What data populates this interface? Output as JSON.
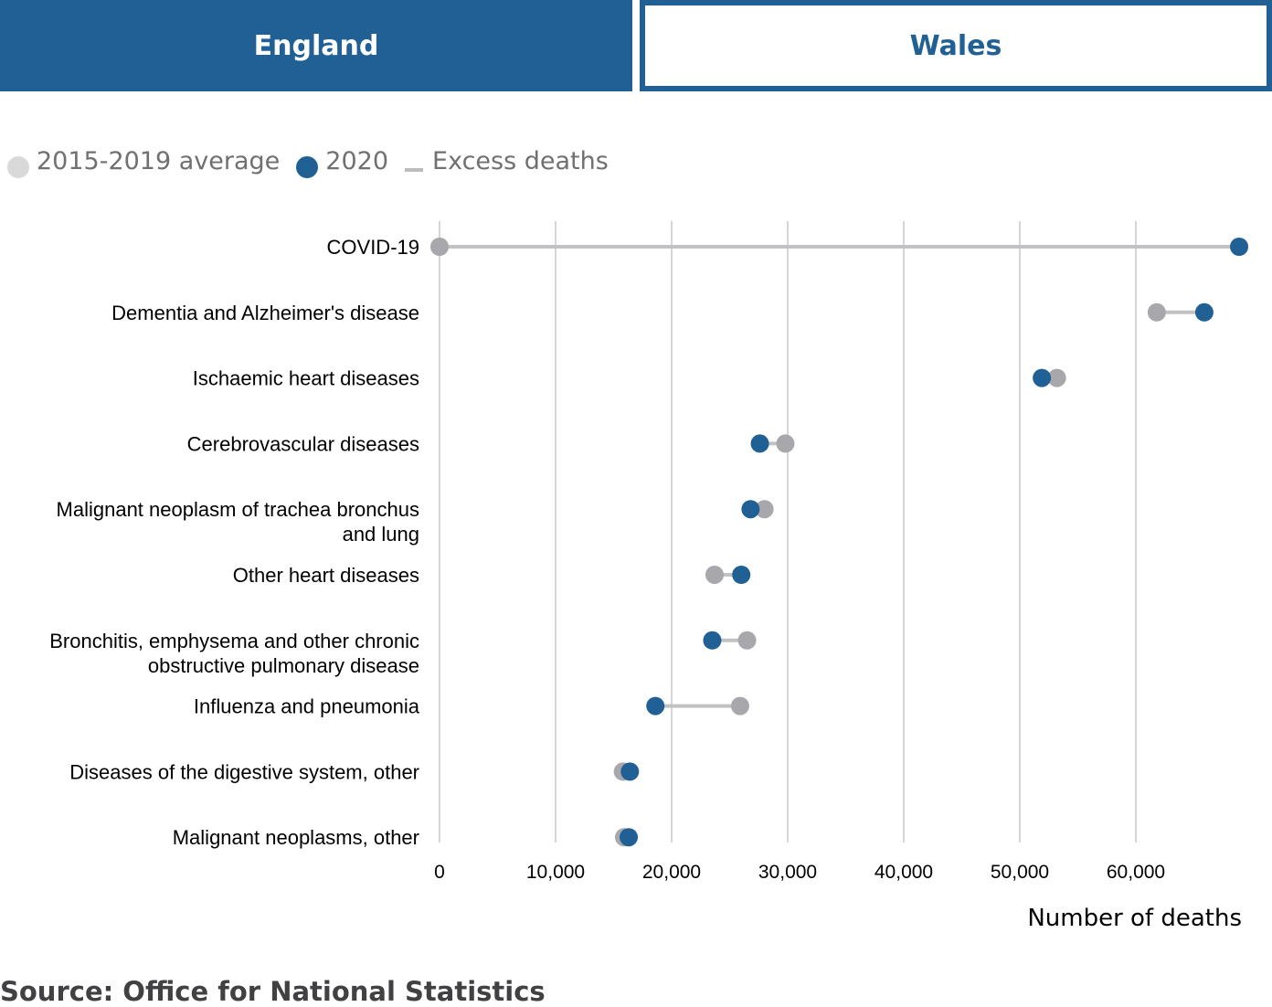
{
  "tabs": [
    {
      "label": "England",
      "active": true
    },
    {
      "label": "Wales",
      "active": false
    }
  ],
  "legend": [
    {
      "label": "2015-2019 average",
      "color": "#d9d9d9",
      "shape": "dot"
    },
    {
      "label": "2020",
      "color": "#206095",
      "shape": "dot"
    },
    {
      "label": "Excess deaths",
      "color": "#bcbcbc",
      "shape": "line"
    }
  ],
  "colors": {
    "average": "#a8a8ac",
    "year2020": "#206095",
    "connector": "#c2c2c4",
    "grid": "#c8c8c8"
  },
  "source": "Source: Office for National Statistics",
  "chart_data": {
    "type": "dot",
    "title": "",
    "xlabel": "Number of deaths",
    "ylabel": "",
    "xlim": [
      0,
      69000
    ],
    "xticks": [
      0,
      10000,
      20000,
      30000,
      40000,
      50000,
      60000
    ],
    "xtick_labels": [
      "0",
      "10,000",
      "20,000",
      "30,000",
      "40,000",
      "50,000",
      "60,000"
    ],
    "grid": true,
    "legend_position": "top-left",
    "categories": [
      "COVID-19",
      "Dementia and Alzheimer's disease",
      "Ischaemic heart diseases",
      "Cerebrovascular diseases",
      "Malignant neoplasm of trachea bronchus and lung",
      "Other heart diseases",
      "Bronchitis, emphysema and other chronic obstructive pulmonary disease",
      "Influenza and pneumonia",
      "Diseases of the digestive system, other",
      "Malignant neoplasms, other"
    ],
    "category_lines": [
      [
        "COVID-19"
      ],
      [
        "Dementia and Alzheimer's disease"
      ],
      [
        "Ischaemic heart diseases"
      ],
      [
        "Cerebrovascular diseases"
      ],
      [
        "Malignant neoplasm of trachea bronchus",
        "and lung"
      ],
      [
        "Other heart diseases"
      ],
      [
        "Bronchitis, emphysema and other chronic",
        "obstructive pulmonary disease"
      ],
      [
        "Influenza and pneumonia"
      ],
      [
        "Diseases of the digestive system, other"
      ],
      [
        "Malignant neoplasms, other"
      ]
    ],
    "series": [
      {
        "name": "2015-2019 average",
        "values": [
          0,
          61800,
          53200,
          29800,
          28000,
          23700,
          26500,
          25900,
          15800,
          15900
        ]
      },
      {
        "name": "2020",
        "values": [
          68900,
          65900,
          51900,
          27600,
          26800,
          26000,
          23500,
          18600,
          16400,
          16300
        ]
      }
    ]
  }
}
